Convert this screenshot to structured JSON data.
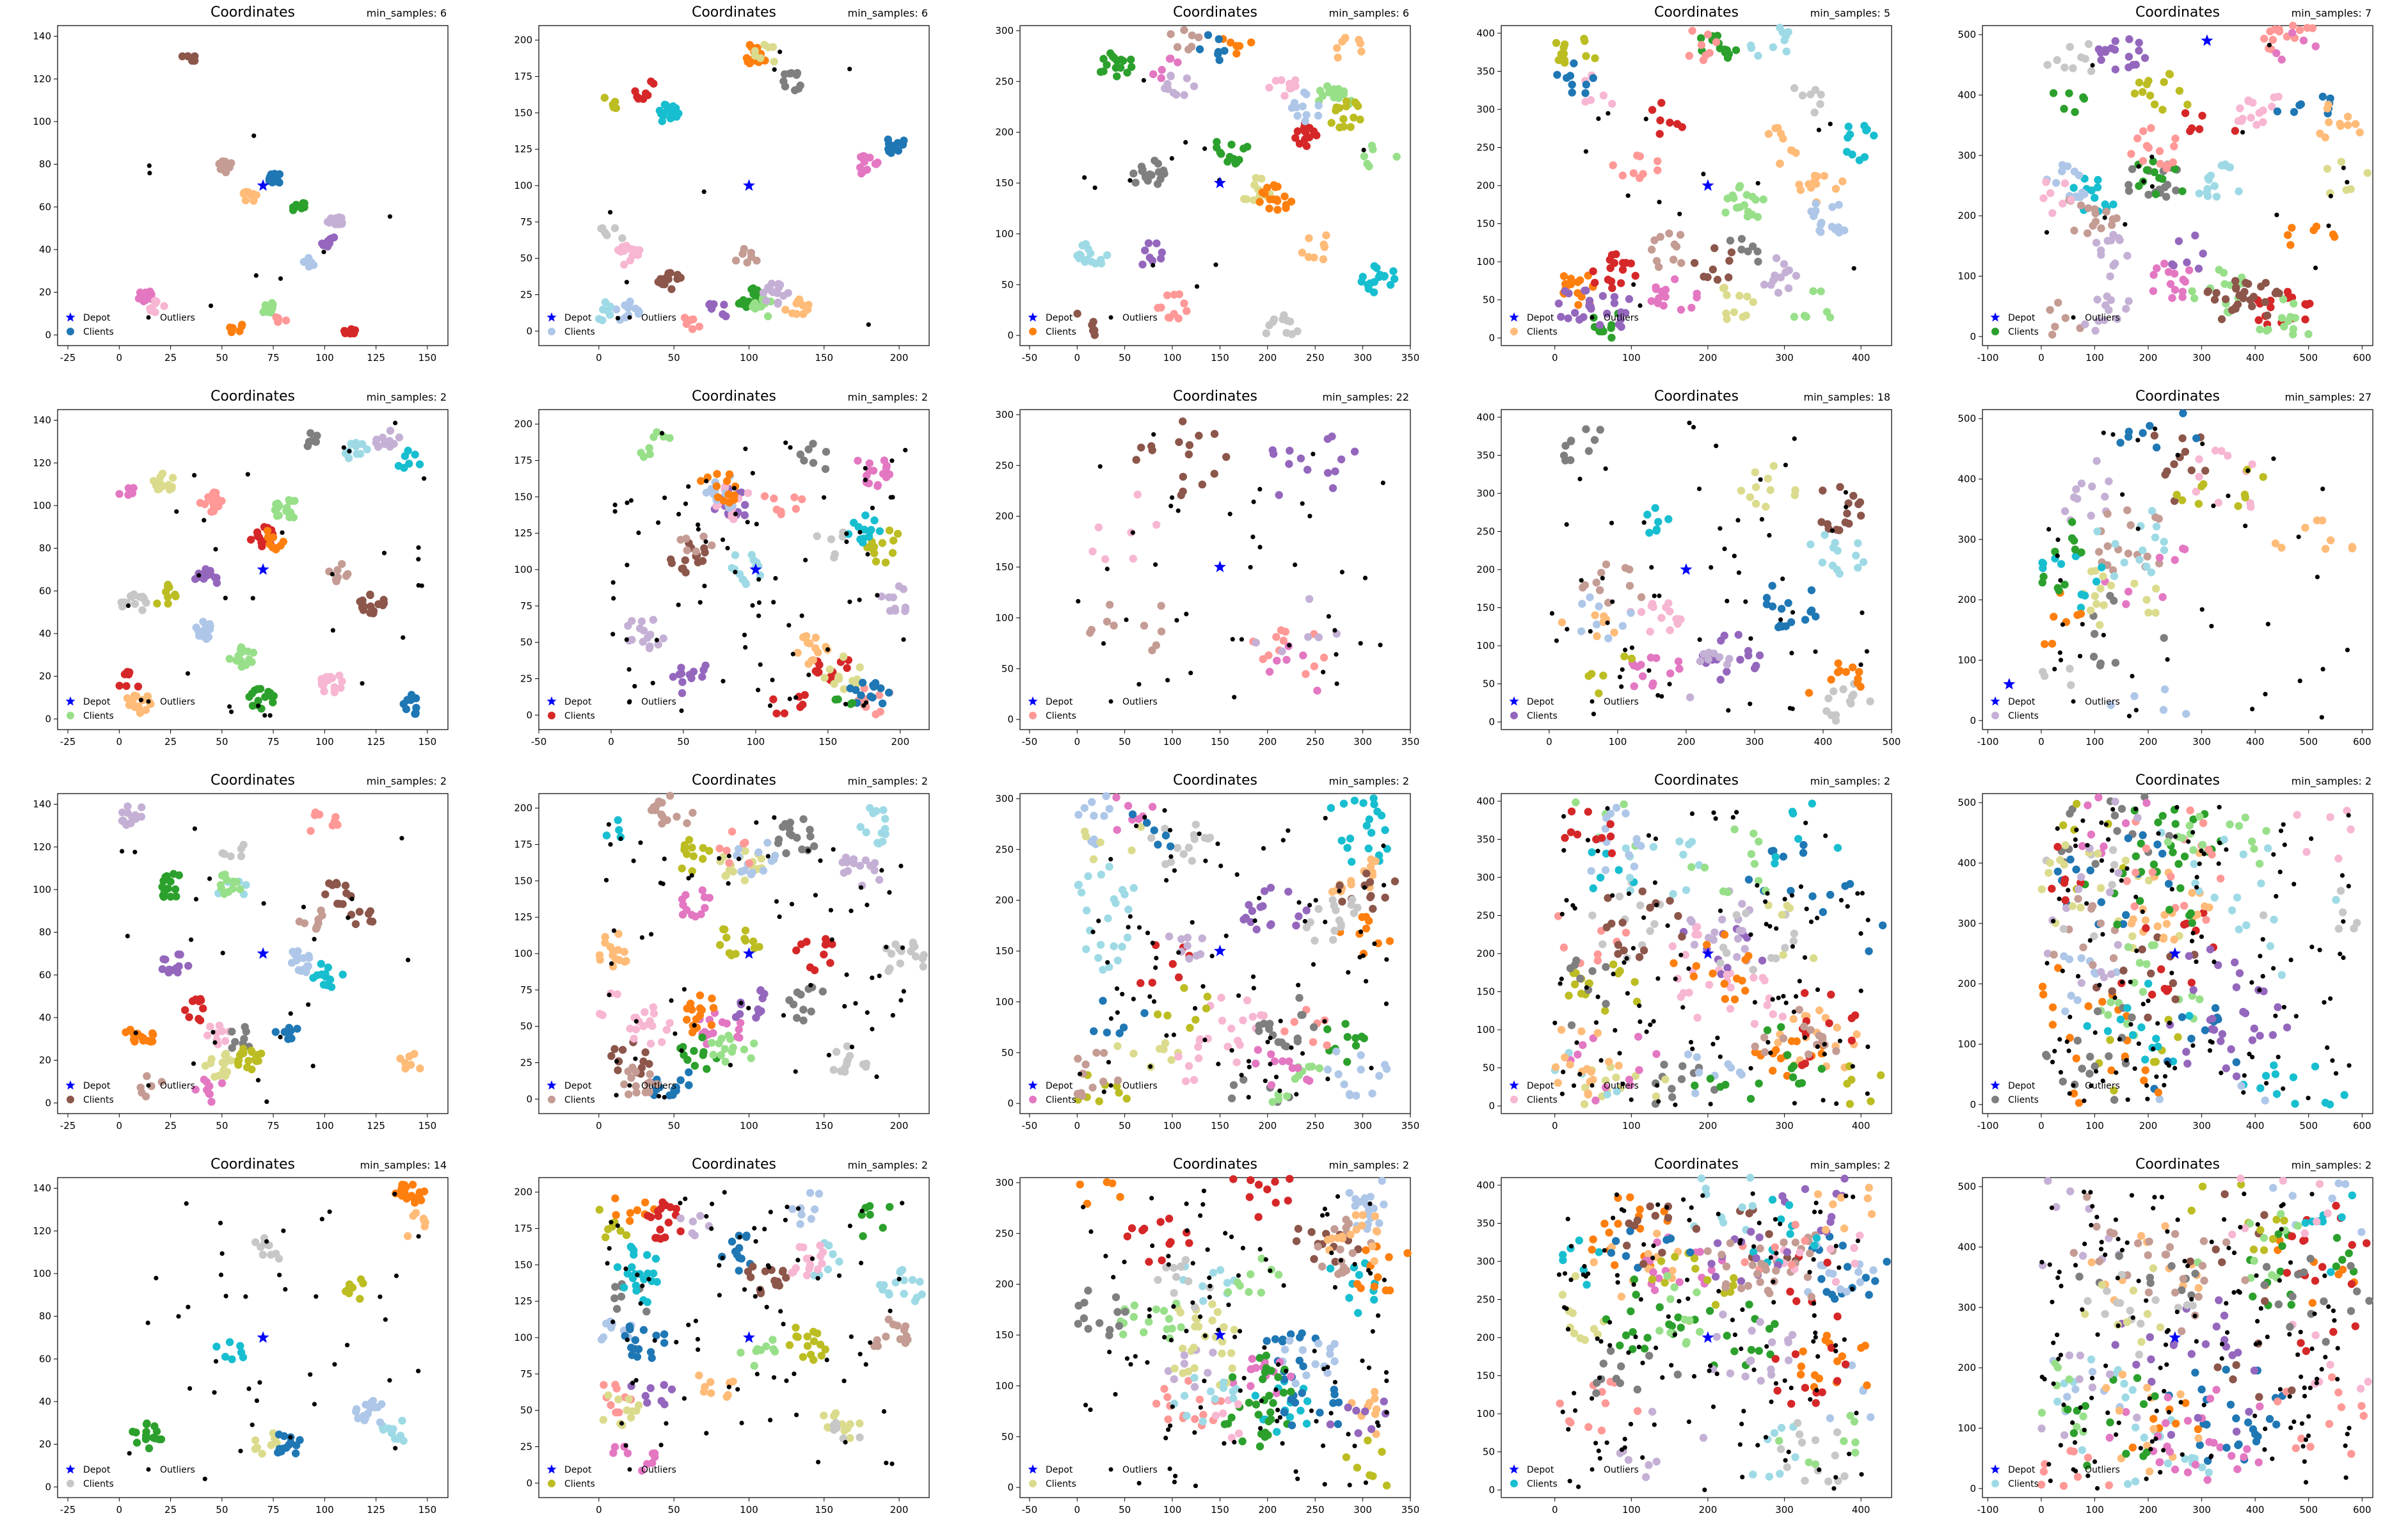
{
  "figure": {
    "rows": 4,
    "cols": 5
  },
  "legend_labels": {
    "depot": "Depot",
    "clients": "Clients",
    "outliers": "Outliers"
  },
  "palette": [
    "#1f77b4",
    "#aec7e8",
    "#ff7f0e",
    "#ffbb78",
    "#2ca02c",
    "#98df8a",
    "#d62728",
    "#ff9896",
    "#9467bd",
    "#c5b0d5",
    "#8c564b",
    "#c49c94",
    "#e377c2",
    "#f7b6d2",
    "#7f7f7f",
    "#c7c7c7",
    "#bcbd22",
    "#dbdb8d",
    "#17becf",
    "#9edae5"
  ],
  "colors": {
    "depot": "#0000ff",
    "outlier": "#000000"
  },
  "chart_data": [
    {
      "type": "scatter",
      "row": 0,
      "col": 0,
      "title": "Coordinates",
      "annotation": "min_samples: 6",
      "xlim": [
        -30,
        160
      ],
      "ylim": [
        -5,
        145
      ],
      "xticks": [
        -25,
        0,
        25,
        50,
        75,
        100,
        125,
        150
      ],
      "yticks": [
        0,
        20,
        40,
        60,
        80,
        100,
        120,
        140
      ],
      "depot": [
        70,
        70
      ],
      "n_clusters": 14,
      "cluster_spread": 3,
      "n_outliers": 8,
      "seed": 11
    },
    {
      "type": "scatter",
      "row": 0,
      "col": 1,
      "title": "Coordinates",
      "annotation": "min_samples: 6",
      "xlim": [
        -40,
        220
      ],
      "ylim": [
        -10,
        210
      ],
      "xticks": [
        0,
        50,
        100,
        150,
        200
      ],
      "yticks": [
        0,
        25,
        50,
        75,
        100,
        125,
        150,
        175,
        200
      ],
      "depot": [
        100,
        100
      ],
      "n_clusters": 20,
      "cluster_spread": 5,
      "n_outliers": 8,
      "seed": 23
    },
    {
      "type": "scatter",
      "row": 0,
      "col": 2,
      "title": "Coordinates",
      "annotation": "min_samples: 6",
      "xlim": [
        -60,
        350
      ],
      "ylim": [
        -10,
        305
      ],
      "xticks": [
        -50,
        0,
        50,
        100,
        150,
        200,
        250,
        300,
        350
      ],
      "yticks": [
        0,
        50,
        100,
        150,
        200,
        250,
        300
      ],
      "depot": [
        150,
        150
      ],
      "n_clusters": 24,
      "cluster_spread": 7,
      "n_outliers": 12,
      "seed": 37
    },
    {
      "type": "scatter",
      "row": 0,
      "col": 3,
      "title": "Coordinates",
      "annotation": "min_samples: 5",
      "xlim": [
        -70,
        440
      ],
      "ylim": [
        -10,
        410
      ],
      "xticks": [
        0,
        100,
        200,
        300,
        400
      ],
      "yticks": [
        0,
        50,
        100,
        150,
        200,
        250,
        300,
        350,
        400
      ],
      "depot": [
        200,
        200
      ],
      "n_clusters": 26,
      "cluster_spread": 9,
      "n_outliers": 14,
      "seed": 41
    },
    {
      "type": "scatter",
      "row": 0,
      "col": 4,
      "title": "Coordinates",
      "annotation": "min_samples: 7",
      "xlim": [
        -110,
        620
      ],
      "ylim": [
        -15,
        515
      ],
      "xticks": [
        -100,
        0,
        100,
        200,
        300,
        400,
        500,
        600
      ],
      "yticks": [
        0,
        100,
        200,
        300,
        400,
        500
      ],
      "depot": [
        310,
        490
      ],
      "n_clusters": 30,
      "cluster_spread": 11,
      "n_outliers": 16,
      "seed": 53
    },
    {
      "type": "scatter",
      "row": 1,
      "col": 0,
      "title": "Coordinates",
      "annotation": "min_samples: 2",
      "xlim": [
        -30,
        160
      ],
      "ylim": [
        -5,
        145
      ],
      "xticks": [
        -25,
        0,
        25,
        50,
        75,
        100,
        125,
        150
      ],
      "yticks": [
        0,
        20,
        40,
        60,
        80,
        100,
        120,
        140
      ],
      "depot": [
        70,
        70
      ],
      "n_clusters": 22,
      "cluster_spread": 5,
      "n_outliers": 30,
      "seed": 61
    },
    {
      "type": "scatter",
      "row": 1,
      "col": 1,
      "title": "Coordinates",
      "annotation": "min_samples: 2",
      "xlim": [
        -50,
        220
      ],
      "ylim": [
        -10,
        210
      ],
      "xticks": [
        -50,
        0,
        50,
        100,
        150,
        200
      ],
      "yticks": [
        0,
        25,
        50,
        75,
        100,
        125,
        150,
        175,
        200
      ],
      "depot": [
        100,
        100
      ],
      "n_clusters": 24,
      "cluster_spread": 8,
      "n_outliers": 80,
      "seed": 71
    },
    {
      "type": "scatter",
      "row": 1,
      "col": 2,
      "title": "Coordinates",
      "annotation": "min_samples: 22",
      "xlim": [
        -60,
        350
      ],
      "ylim": [
        -10,
        305
      ],
      "xticks": [
        -50,
        0,
        50,
        100,
        150,
        200,
        250,
        300,
        350
      ],
      "yticks": [
        0,
        50,
        100,
        150,
        200,
        250,
        300
      ],
      "depot": [
        150,
        150
      ],
      "n_clusters": 7,
      "cluster_spread": 18,
      "n_outliers": 40,
      "seed": 83
    },
    {
      "type": "scatter",
      "row": 1,
      "col": 3,
      "title": "Coordinates",
      "annotation": "min_samples: 18",
      "xlim": [
        -70,
        500
      ],
      "ylim": [
        -10,
        410
      ],
      "xticks": [
        0,
        100,
        200,
        300,
        400,
        500
      ],
      "yticks": [
        0,
        50,
        100,
        150,
        200,
        250,
        300,
        350,
        400
      ],
      "depot": [
        200,
        200
      ],
      "n_clusters": 16,
      "cluster_spread": 12,
      "n_outliers": 60,
      "seed": 97
    },
    {
      "type": "scatter",
      "row": 1,
      "col": 4,
      "title": "Coordinates",
      "annotation": "min_samples: 27",
      "xlim": [
        -110,
        620
      ],
      "ylim": [
        -15,
        515
      ],
      "xticks": [
        -100,
        0,
        100,
        200,
        300,
        400,
        500,
        600
      ],
      "yticks": [
        0,
        100,
        200,
        300,
        400,
        500
      ],
      "depot": [
        -60,
        60
      ],
      "n_clusters": 16,
      "cluster_spread": 18,
      "n_outliers": 40,
      "seed": 101
    },
    {
      "type": "scatter",
      "row": 2,
      "col": 0,
      "title": "Coordinates",
      "annotation": "min_samples: 2",
      "xlim": [
        -30,
        160
      ],
      "ylim": [
        -5,
        145
      ],
      "xticks": [
        -25,
        0,
        25,
        50,
        75,
        100,
        125,
        150
      ],
      "yticks": [
        0,
        20,
        40,
        60,
        80,
        100,
        120,
        140
      ],
      "depot": [
        70,
        70
      ],
      "n_clusters": 22,
      "cluster_spread": 6,
      "n_outliers": 25,
      "seed": 113
    },
    {
      "type": "scatter",
      "row": 2,
      "col": 1,
      "title": "Coordinates",
      "annotation": "min_samples: 2",
      "xlim": [
        -40,
        220
      ],
      "ylim": [
        -10,
        210
      ],
      "xticks": [
        0,
        50,
        100,
        150,
        200
      ],
      "yticks": [
        0,
        25,
        50,
        75,
        100,
        125,
        150,
        175,
        200
      ],
      "depot": [
        100,
        100
      ],
      "n_clusters": 26,
      "cluster_spread": 9,
      "n_outliers": 70,
      "seed": 127
    },
    {
      "type": "scatter",
      "row": 2,
      "col": 2,
      "title": "Coordinates",
      "annotation": "min_samples: 2",
      "xlim": [
        -60,
        350
      ],
      "ylim": [
        -10,
        305
      ],
      "xticks": [
        -50,
        0,
        50,
        100,
        150,
        200,
        250,
        300,
        350
      ],
      "yticks": [
        0,
        50,
        100,
        150,
        200,
        250,
        300
      ],
      "depot": [
        150,
        150
      ],
      "n_clusters": 30,
      "cluster_spread": 13,
      "n_outliers": 90,
      "seed": 131
    },
    {
      "type": "scatter",
      "row": 2,
      "col": 3,
      "title": "Coordinates",
      "annotation": "min_samples: 2",
      "xlim": [
        -70,
        440
      ],
      "ylim": [
        -10,
        410
      ],
      "xticks": [
        0,
        100,
        200,
        300,
        400
      ],
      "yticks": [
        0,
        50,
        100,
        150,
        200,
        250,
        300,
        350,
        400
      ],
      "depot": [
        200,
        200
      ],
      "n_clusters": 34,
      "cluster_spread": 18,
      "n_outliers": 110,
      "seed": 149
    },
    {
      "type": "scatter",
      "row": 2,
      "col": 4,
      "title": "Coordinates",
      "annotation": "min_samples: 2",
      "xlim": [
        -110,
        620
      ],
      "ylim": [
        -15,
        515
      ],
      "xticks": [
        -100,
        0,
        100,
        200,
        300,
        400,
        500,
        600
      ],
      "yticks": [
        0,
        100,
        200,
        300,
        400,
        500
      ],
      "depot": [
        250,
        250
      ],
      "n_clusters": 36,
      "cluster_spread": 24,
      "n_outliers": 130,
      "seed": 157
    },
    {
      "type": "scatter",
      "row": 3,
      "col": 0,
      "title": "Coordinates",
      "annotation": "min_samples: 14",
      "xlim": [
        -30,
        160
      ],
      "ylim": [
        -5,
        145
      ],
      "xticks": [
        -25,
        0,
        25,
        50,
        75,
        100,
        125,
        150
      ],
      "yticks": [
        0,
        20,
        40,
        60,
        80,
        100,
        120,
        140
      ],
      "depot": [
        70,
        70
      ],
      "n_clusters": 10,
      "cluster_spread": 6,
      "n_outliers": 40,
      "seed": 163
    },
    {
      "type": "scatter",
      "row": 3,
      "col": 1,
      "title": "Coordinates",
      "annotation": "min_samples: 2",
      "xlim": [
        -40,
        220
      ],
      "ylim": [
        -10,
        210
      ],
      "xticks": [
        0,
        50,
        100,
        150,
        200
      ],
      "yticks": [
        0,
        25,
        50,
        75,
        100,
        125,
        150,
        175,
        200
      ],
      "depot": [
        100,
        100
      ],
      "n_clusters": 26,
      "cluster_spread": 9,
      "n_outliers": 80,
      "seed": 173
    },
    {
      "type": "scatter",
      "row": 3,
      "col": 2,
      "title": "Coordinates",
      "annotation": "min_samples: 2",
      "xlim": [
        -60,
        350
      ],
      "ylim": [
        -10,
        305
      ],
      "xticks": [
        -50,
        0,
        50,
        100,
        150,
        200,
        250,
        300,
        350
      ],
      "yticks": [
        0,
        50,
        100,
        150,
        200,
        250,
        300
      ],
      "depot": [
        150,
        150
      ],
      "n_clusters": 30,
      "cluster_spread": 13,
      "n_outliers": 110,
      "seed": 181
    },
    {
      "type": "scatter",
      "row": 3,
      "col": 3,
      "title": "Coordinates",
      "annotation": "min_samples: 2",
      "xlim": [
        -70,
        440
      ],
      "ylim": [
        -10,
        410
      ],
      "xticks": [
        0,
        100,
        200,
        300,
        400
      ],
      "yticks": [
        0,
        50,
        100,
        150,
        200,
        250,
        300,
        350,
        400
      ],
      "depot": [
        200,
        200
      ],
      "n_clusters": 34,
      "cluster_spread": 18,
      "n_outliers": 130,
      "seed": 191
    },
    {
      "type": "scatter",
      "row": 3,
      "col": 4,
      "title": "Coordinates",
      "annotation": "min_samples: 2",
      "xlim": [
        -110,
        620
      ],
      "ylim": [
        -15,
        515
      ],
      "xticks": [
        -100,
        0,
        100,
        200,
        300,
        400,
        500,
        600
      ],
      "yticks": [
        0,
        100,
        200,
        300,
        400,
        500
      ],
      "depot": [
        250,
        250
      ],
      "n_clusters": 36,
      "cluster_spread": 24,
      "n_outliers": 150,
      "seed": 197
    }
  ]
}
